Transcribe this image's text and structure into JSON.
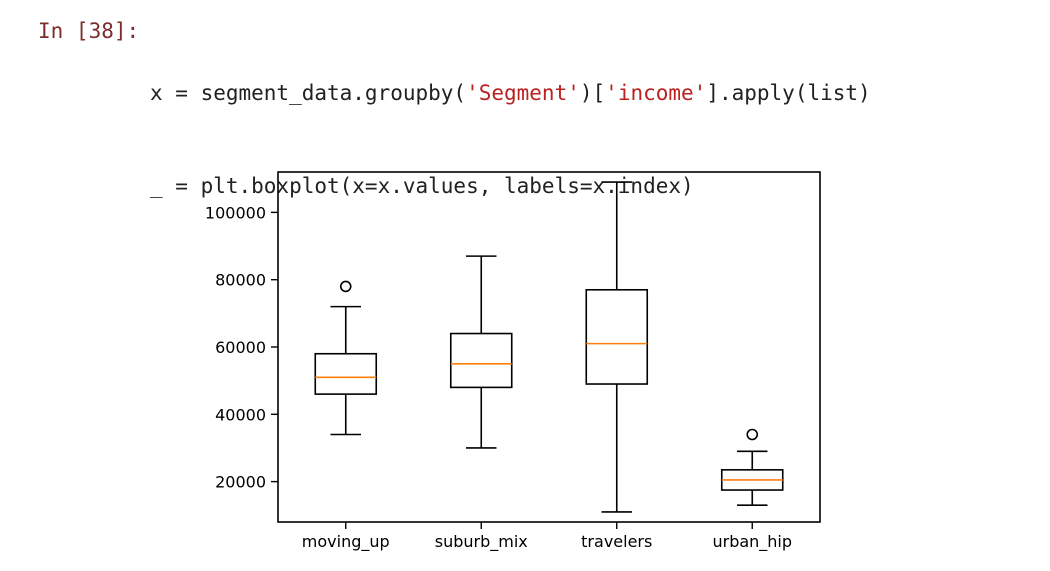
{
  "cell": {
    "prompt": "In [38]:",
    "code_lines": [
      [
        "x = segment_data.groupby(",
        "'Segment'",
        ")[",
        "'income'",
        "].apply(list)"
      ],
      [
        "_ = plt.boxplot(x=x.values, labels=x.index)"
      ]
    ]
  },
  "chart_data": {
    "type": "boxplot",
    "categories": [
      "moving_up",
      "suburb_mix",
      "travelers",
      "urban_hip"
    ],
    "y_ticks": [
      20000,
      40000,
      60000,
      80000,
      100000
    ],
    "ylim": [
      8000,
      112000
    ],
    "boxes": [
      {
        "name": "moving_up",
        "whisker_low": 34000,
        "q1": 46000,
        "median": 51000,
        "q3": 58000,
        "whisker_high": 72000,
        "outliers": [
          78000
        ]
      },
      {
        "name": "suburb_mix",
        "whisker_low": 30000,
        "q1": 48000,
        "median": 55000,
        "q3": 64000,
        "whisker_high": 87000,
        "outliers": []
      },
      {
        "name": "travelers",
        "whisker_low": 11000,
        "q1": 49000,
        "median": 61000,
        "q3": 77000,
        "whisker_high": 109000,
        "outliers": []
      },
      {
        "name": "urban_hip",
        "whisker_low": 13000,
        "q1": 17500,
        "median": 20500,
        "q3": 23500,
        "whisker_high": 29000,
        "outliers": [
          34000
        ]
      }
    ],
    "colors": {
      "box": "#000000",
      "median": "#ff7f0e"
    },
    "grid": false
  }
}
